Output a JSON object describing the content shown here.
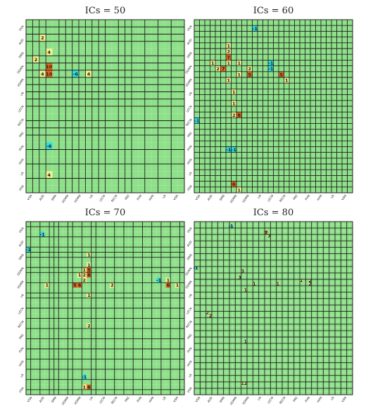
{
  "colors": {
    "background": "#8fe08a",
    "grid_minor": "#b4eeb0",
    "grid_major": "#1f1f1f",
    "cell_pos_1": "#f2f28c",
    "cell_pos_high": "#e06a1e",
    "cell_neg": "#2ee0e0",
    "label_text": "#202020"
  },
  "chart_data": [
    {
      "type": "heatmap",
      "title": "ICs = 50",
      "labels": [
        "VSN",
        "AUD",
        "SMN",
        "DDMN",
        "VDMN",
        "LN",
        "LECN",
        "RECN",
        "PRE",
        "PVN",
        "HVN",
        "LR",
        "VSN"
      ],
      "cells": [
        {
          "r": 2,
          "c": 2,
          "v": "2"
        },
        {
          "r": 4,
          "c": 3,
          "v": "4"
        },
        {
          "r": 5,
          "c": 1,
          "v": "2"
        },
        {
          "r": 6,
          "c": 3,
          "v": "10"
        },
        {
          "r": 7,
          "c": 2,
          "v": "4"
        },
        {
          "r": 7,
          "c": 3,
          "v": "10"
        },
        {
          "r": 7,
          "c": 7,
          "v": "-6"
        },
        {
          "r": 7,
          "c": 9,
          "v": "4"
        },
        {
          "r": 17,
          "c": 3,
          "v": "-6"
        },
        {
          "r": 21,
          "c": 3,
          "v": "4"
        }
      ]
    },
    {
      "type": "heatmap",
      "title": "ICs = 60",
      "labels": [
        "VSN",
        "AUD",
        "SMN",
        "DDMN",
        "VDMN",
        "LN",
        "LECN",
        "RECN",
        "PRE",
        "PVN",
        "HVN",
        "LR",
        "VSN"
      ],
      "cells": [
        {
          "r": 1,
          "c": 11,
          "v": "-1"
        },
        {
          "r": 4,
          "c": 6,
          "v": "1"
        },
        {
          "r": 5,
          "c": 6,
          "v": "2"
        },
        {
          "r": 6,
          "c": 6,
          "v": "7"
        },
        {
          "r": 7,
          "c": 3,
          "v": "1"
        },
        {
          "r": 7,
          "c": 6,
          "v": "1"
        },
        {
          "r": 7,
          "c": 8,
          "v": "1"
        },
        {
          "r": 7,
          "c": 14,
          "v": "-1"
        },
        {
          "r": 8,
          "c": 4,
          "v": "2"
        },
        {
          "r": 8,
          "c": 5,
          "v": "7"
        },
        {
          "r": 8,
          "c": 10,
          "v": "2"
        },
        {
          "r": 8,
          "c": 14,
          "v": "-1"
        },
        {
          "r": 9,
          "c": 8,
          "v": "1"
        },
        {
          "r": 9,
          "c": 10,
          "v": "5"
        },
        {
          "r": 9,
          "c": 16,
          "v": "5"
        },
        {
          "r": 10,
          "c": 6,
          "v": "1"
        },
        {
          "r": 10,
          "c": 17,
          "v": "1"
        },
        {
          "r": 12,
          "c": 7,
          "v": "1"
        },
        {
          "r": 14,
          "c": 7,
          "v": "1"
        },
        {
          "r": 16,
          "c": 7,
          "v": "2"
        },
        {
          "r": 16,
          "c": 8,
          "v": "8"
        },
        {
          "r": 17,
          "c": 0,
          "v": "-1"
        },
        {
          "r": 22,
          "c": 6,
          "v": "-1"
        },
        {
          "r": 22,
          "c": 7,
          "v": "-1"
        },
        {
          "r": 28,
          "c": 7,
          "v": "6"
        },
        {
          "r": 29,
          "c": 8,
          "v": "1"
        }
      ]
    },
    {
      "type": "heatmap",
      "title": "ICs = 70",
      "labels": [
        "VSN",
        "AUD",
        "SMN",
        "DDMN",
        "VDMN",
        "LN",
        "LECN",
        "RECN",
        "PRE",
        "PVN",
        "HVN",
        "LR",
        "VSN"
      ],
      "cells": [
        {
          "r": 2,
          "c": 3,
          "v": "-1"
        },
        {
          "r": 5,
          "c": 0,
          "v": "-1"
        },
        {
          "r": 6,
          "c": 13,
          "v": "1"
        },
        {
          "r": 8,
          "c": 13,
          "v": "1"
        },
        {
          "r": 9,
          "c": 12,
          "v": "1"
        },
        {
          "r": 9,
          "c": 13,
          "v": "5"
        },
        {
          "r": 10,
          "c": 11,
          "v": "1"
        },
        {
          "r": 10,
          "c": 12,
          "v": "2"
        },
        {
          "r": 10,
          "c": 13,
          "v": "6"
        },
        {
          "r": 11,
          "c": 12,
          "v": "2"
        },
        {
          "r": 11,
          "c": 28,
          "v": "-1"
        },
        {
          "r": 11,
          "c": 30,
          "v": "1"
        },
        {
          "r": 12,
          "c": 4,
          "v": "1"
        },
        {
          "r": 12,
          "c": 10,
          "v": "5"
        },
        {
          "r": 12,
          "c": 11,
          "v": "6"
        },
        {
          "r": 12,
          "c": 18,
          "v": "2"
        },
        {
          "r": 12,
          "c": 30,
          "v": "6"
        },
        {
          "r": 12,
          "c": 32,
          "v": "1"
        },
        {
          "r": 14,
          "c": 13,
          "v": "1"
        },
        {
          "r": 20,
          "c": 13,
          "v": "2"
        },
        {
          "r": 30,
          "c": 12,
          "v": "-1"
        },
        {
          "r": 32,
          "c": 12,
          "v": "1"
        },
        {
          "r": 32,
          "c": 13,
          "v": "6"
        }
      ]
    },
    {
      "type": "heatmap",
      "title": "ICs = 80",
      "labels": [
        "VSN",
        "AUD",
        "SMN",
        "DDMN",
        "VDMN",
        "LN",
        "LECN",
        "RECN",
        "PRE",
        "PVN",
        "HVN",
        "LR",
        "VSN"
      ],
      "cells": [
        {
          "r": 1,
          "c": 12,
          "v": "-1"
        },
        {
          "r": 3,
          "c": 24,
          "v": "7"
        },
        {
          "r": 4,
          "c": 25,
          "v": "3"
        },
        {
          "r": 14,
          "c": 0,
          "v": "-1"
        },
        {
          "r": 15,
          "c": 16,
          "v": "3"
        },
        {
          "r": 17,
          "c": 15,
          "v": "3"
        },
        {
          "r": 18,
          "c": 36,
          "v": "1"
        },
        {
          "r": 18,
          "c": 39,
          "v": "2"
        },
        {
          "r": 19,
          "c": 20,
          "v": "1"
        },
        {
          "r": 19,
          "c": 28,
          "v": "1"
        },
        {
          "r": 19,
          "c": 39,
          "v": "2"
        },
        {
          "r": 21,
          "c": 17,
          "v": "1"
        },
        {
          "r": 28,
          "c": 4,
          "v": "2"
        },
        {
          "r": 29,
          "c": 5,
          "v": "2"
        },
        {
          "r": 37,
          "c": 17,
          "v": "1"
        },
        {
          "r": 50,
          "c": 16,
          "v": "1"
        },
        {
          "r": 50,
          "c": 17,
          "v": "2"
        }
      ]
    }
  ]
}
